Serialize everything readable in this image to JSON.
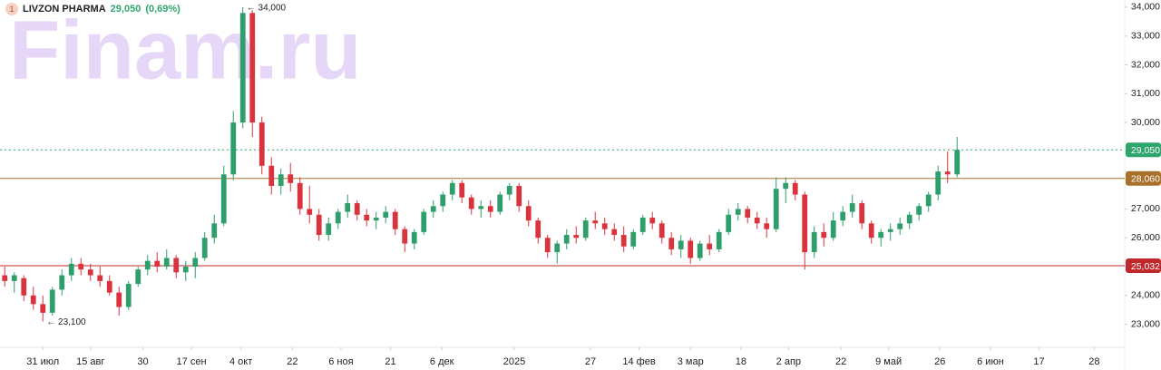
{
  "chart_data": {
    "type": "candlestick",
    "badge": "1",
    "title": "LIVZON PHARMA",
    "last_price": {
      "value": 29050,
      "label": "29,050"
    },
    "change": "(0,69%)",
    "watermark": "Finam.ru",
    "up_color": "#2e9e6a",
    "down_color": "#d9343d",
    "last_color": "#2fa56e",
    "ylim": [
      22200,
      34250
    ],
    "yticks": [
      {
        "value": 23000,
        "label": "23,000"
      },
      {
        "value": 24000,
        "label": "24,000"
      },
      {
        "value": 25000,
        "label": "25,000"
      },
      {
        "value": 26000,
        "label": "26,000"
      },
      {
        "value": 27000,
        "label": "27,000"
      },
      {
        "value": 28000,
        "label": "28,000"
      },
      {
        "value": 29000,
        "label": "29,000"
      },
      {
        "value": 30000,
        "label": "30,000"
      },
      {
        "value": 31000,
        "label": "31,000"
      },
      {
        "value": 32000,
        "label": "32,000"
      },
      {
        "value": 33000,
        "label": "33,000"
      },
      {
        "value": 34000,
        "label": "34,000"
      }
    ],
    "xlim": [
      0,
      118.1
    ],
    "xticks": [
      {
        "value": 4.5,
        "label": "31 июл"
      },
      {
        "value": 9.5,
        "label": "15 авг"
      },
      {
        "value": 15,
        "label": "30"
      },
      {
        "value": 20.1,
        "label": "17 сен"
      },
      {
        "value": 25.3,
        "label": "4 окт"
      },
      {
        "value": 30.7,
        "label": "22"
      },
      {
        "value": 35.8,
        "label": "6 ноя"
      },
      {
        "value": 41,
        "label": "21"
      },
      {
        "value": 46.4,
        "label": "6 дек"
      },
      {
        "value": 54,
        "label": "2025"
      },
      {
        "value": 62,
        "label": "27"
      },
      {
        "value": 67.1,
        "label": "14 фев"
      },
      {
        "value": 72.5,
        "label": "3 мар"
      },
      {
        "value": 77.8,
        "label": "18"
      },
      {
        "value": 82.8,
        "label": "2 апр"
      },
      {
        "value": 88.3,
        "label": "22"
      },
      {
        "value": 93.3,
        "label": "9 май"
      },
      {
        "value": 98.7,
        "label": "26"
      },
      {
        "value": 104,
        "label": "6 июн"
      },
      {
        "value": 109.1,
        "label": "17"
      },
      {
        "value": 114.9,
        "label": "28"
      }
    ],
    "levels": [
      {
        "value": 28060,
        "label": "28,060",
        "color": "#a8702a"
      },
      {
        "value": 25032,
        "label": "25,032",
        "color": "#c0282d"
      }
    ],
    "high_label": {
      "value": 34000,
      "label": "34,000"
    },
    "low_label": {
      "value": 23100,
      "label": "23,100"
    },
    "candles": [
      [
        24700,
        25000,
        24300,
        24500
      ],
      [
        24500,
        24800,
        24100,
        24700
      ],
      [
        24600,
        24700,
        23800,
        24000
      ],
      [
        24000,
        24300,
        23500,
        23700
      ],
      [
        23700,
        24000,
        23100,
        23400
      ],
      [
        23400,
        24300,
        23300,
        24200
      ],
      [
        24200,
        24900,
        24000,
        24700
      ],
      [
        24700,
        25300,
        24500,
        25100
      ],
      [
        25100,
        25300,
        24700,
        24900
      ],
      [
        24900,
        25100,
        24500,
        24700
      ],
      [
        24700,
        25000,
        24300,
        24500
      ],
      [
        24500,
        24700,
        24000,
        24100
      ],
      [
        24100,
        24300,
        23300,
        23600
      ],
      [
        23600,
        24500,
        23500,
        24400
      ],
      [
        24400,
        25000,
        24300,
        24900
      ],
      [
        24900,
        25400,
        24700,
        25200
      ],
      [
        25200,
        25500,
        24800,
        25000
      ],
      [
        25000,
        25600,
        24900,
        25300
      ],
      [
        25300,
        25400,
        24600,
        24800
      ],
      [
        24800,
        25200,
        24500,
        25000
      ],
      [
        25000,
        25500,
        24600,
        25300
      ],
      [
        25300,
        26200,
        25200,
        26000
      ],
      [
        26000,
        26800,
        25800,
        26500
      ],
      [
        26500,
        28500,
        26400,
        28200
      ],
      [
        28200,
        30400,
        28000,
        30000
      ],
      [
        30000,
        34000,
        29800,
        33800
      ],
      [
        33800,
        33900,
        29500,
        30000
      ],
      [
        30000,
        30200,
        28200,
        28500
      ],
      [
        28500,
        28800,
        27500,
        27800
      ],
      [
        27800,
        28400,
        27500,
        28200
      ],
      [
        28200,
        28600,
        27600,
        27900
      ],
      [
        27900,
        28100,
        26800,
        27000
      ],
      [
        27000,
        27800,
        26500,
        26800
      ],
      [
        26800,
        27000,
        25900,
        26100
      ],
      [
        26100,
        26700,
        25900,
        26500
      ],
      [
        26500,
        27000,
        26300,
        26900
      ],
      [
        26900,
        27500,
        26700,
        27200
      ],
      [
        27200,
        27300,
        26600,
        26800
      ],
      [
        26800,
        27000,
        26400,
        26600
      ],
      [
        26600,
        26900,
        26300,
        26700
      ],
      [
        26700,
        27100,
        26500,
        26900
      ],
      [
        26900,
        27000,
        26100,
        26300
      ],
      [
        26300,
        26400,
        25500,
        25800
      ],
      [
        25800,
        26300,
        25600,
        26200
      ],
      [
        26200,
        27000,
        26100,
        26900
      ],
      [
        26900,
        27300,
        26700,
        27100
      ],
      [
        27100,
        27600,
        26900,
        27500
      ],
      [
        27500,
        28000,
        27300,
        27900
      ],
      [
        27900,
        28000,
        27200,
        27400
      ],
      [
        27400,
        27500,
        26800,
        27000
      ],
      [
        27000,
        27300,
        26700,
        27100
      ],
      [
        27100,
        27300,
        26700,
        26900
      ],
      [
        26900,
        27600,
        26800,
        27500
      ],
      [
        27500,
        27900,
        27300,
        27800
      ],
      [
        27800,
        27900,
        26900,
        27100
      ],
      [
        27100,
        27300,
        26400,
        26600
      ],
      [
        26600,
        26700,
        25800,
        26000
      ],
      [
        26000,
        26100,
        25300,
        25500
      ],
      [
        25500,
        25900,
        25100,
        25800
      ],
      [
        25800,
        26300,
        25600,
        26100
      ],
      [
        26100,
        26400,
        25800,
        26000
      ],
      [
        26000,
        26700,
        25900,
        26600
      ],
      [
        26600,
        26900,
        26300,
        26500
      ],
      [
        26500,
        26700,
        26100,
        26300
      ],
      [
        26300,
        26500,
        25900,
        26100
      ],
      [
        26100,
        26400,
        25500,
        25700
      ],
      [
        25700,
        26300,
        25600,
        26200
      ],
      [
        26200,
        26800,
        26100,
        26700
      ],
      [
        26700,
        26900,
        26300,
        26500
      ],
      [
        26500,
        26600,
        25800,
        26000
      ],
      [
        26000,
        26200,
        25400,
        25600
      ],
      [
        25600,
        26100,
        25300,
        25900
      ],
      [
        25900,
        26000,
        25100,
        25300
      ],
      [
        25300,
        25900,
        25200,
        25800
      ],
      [
        25800,
        26100,
        25400,
        25600
      ],
      [
        25600,
        26300,
        25500,
        26200
      ],
      [
        26200,
        27000,
        26100,
        26800
      ],
      [
        26800,
        27200,
        26600,
        27000
      ],
      [
        27000,
        27100,
        26500,
        26700
      ],
      [
        26700,
        26900,
        26300,
        26500
      ],
      [
        26500,
        26700,
        26000,
        26300
      ],
      [
        26300,
        28100,
        26200,
        27700
      ],
      [
        27700,
        28100,
        27200,
        27900
      ],
      [
        27900,
        28000,
        27300,
        27500
      ],
      [
        27500,
        27600,
        24900,
        25500
      ],
      [
        25500,
        26400,
        25300,
        26200
      ],
      [
        26200,
        26500,
        25700,
        26000
      ],
      [
        26000,
        26900,
        25900,
        26600
      ],
      [
        26600,
        27100,
        26400,
        26900
      ],
      [
        26900,
        27500,
        26700,
        27200
      ],
      [
        27200,
        27300,
        26300,
        26500
      ],
      [
        26500,
        26600,
        25800,
        26000
      ],
      [
        26000,
        26300,
        25700,
        26200
      ],
      [
        26200,
        26500,
        25900,
        26300
      ],
      [
        26300,
        26700,
        26100,
        26500
      ],
      [
        26500,
        26900,
        26300,
        26800
      ],
      [
        26800,
        27200,
        26600,
        27100
      ],
      [
        27100,
        27600,
        26900,
        27500
      ],
      [
        27500,
        28500,
        27300,
        28300
      ],
      [
        28300,
        29000,
        27900,
        28200
      ],
      [
        28200,
        29500,
        28100,
        29050
      ]
    ]
  }
}
